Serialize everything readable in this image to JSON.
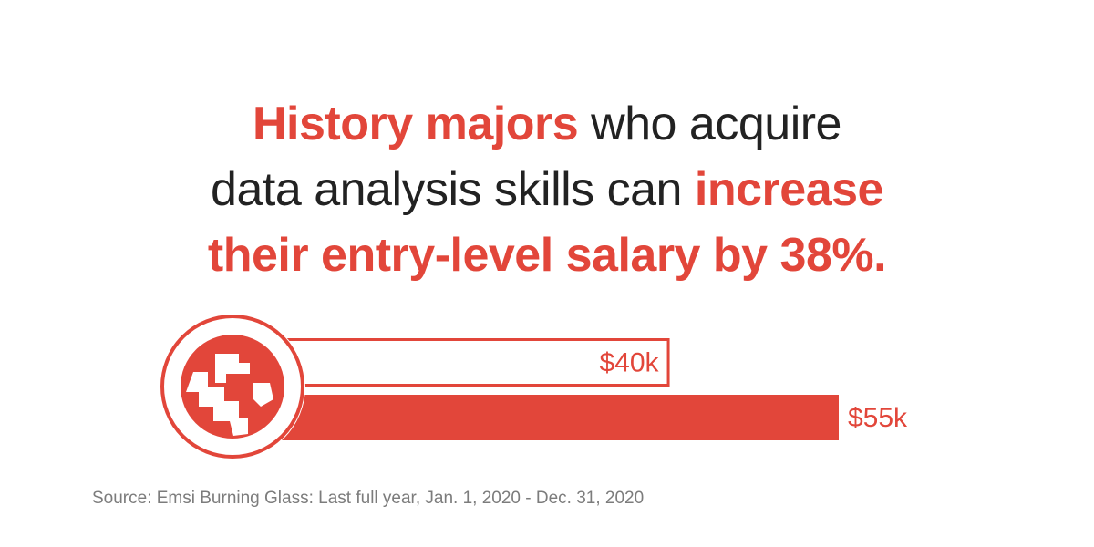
{
  "headline": {
    "line1": {
      "accent": "History majors",
      "rest": " who acquire"
    },
    "line2": {
      "rest": "data analysis skills can ",
      "accent": "increase"
    },
    "line3": {
      "accent": "their entry-level salary by 38%."
    }
  },
  "colors": {
    "accent": "#e2463a",
    "text": "#222222",
    "source": "#7c7c7c"
  },
  "icon": "globe-icon",
  "chart_data": {
    "type": "bar",
    "orientation": "horizontal",
    "categories": [
      "",
      ""
    ],
    "values": [
      40,
      55
    ],
    "labels": [
      "$40k",
      "$55k"
    ],
    "xlim": [
      0,
      55
    ]
  },
  "source": "Source: Emsi Burning Glass: Last full year, Jan. 1, 2020 - Dec. 31, 2020"
}
